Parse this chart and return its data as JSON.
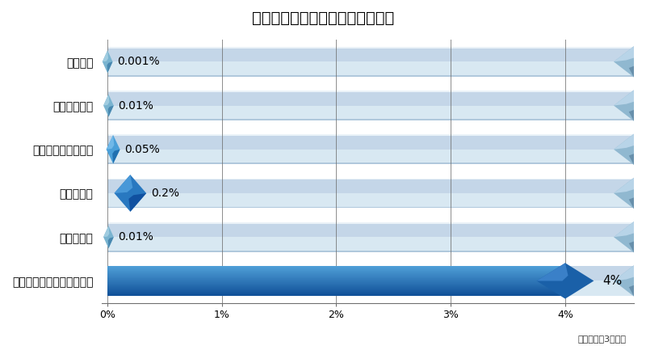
{
  "title": "》主な金融商品の利回り比較表《",
  "title_full": "[主な金融商品の利回り比較表]",
  "categories": [
    "普通預金",
    "定期預金５年",
    "個人向け国債１０年",
    "米ドル預金",
    "ユーロ預金",
    "当社オーナーズマンション"
  ],
  "values": [
    0.001,
    0.01,
    0.05,
    0.2,
    0.01,
    4.0
  ],
  "labels": [
    "0.001%",
    "0.01%",
    "0.05%",
    "0.2%",
    "0.01%",
    "4%"
  ],
  "xlim_max": 4.6,
  "xticks": [
    0,
    1,
    2,
    3,
    4
  ],
  "xticklabels": [
    "0%",
    "1%",
    "2%",
    "3%",
    "4%"
  ],
  "bar_bg_color_light": "#dce8f0",
  "bar_bg_color_mid": "#c8d8e8",
  "bar_stripe_color": "#e8f0f8",
  "bar_main_blue_top": "#4a9fd0",
  "bar_main_blue_bot": "#1a5fa8",
  "title_fontsize": 14,
  "cat_fontsize": 10,
  "val_fontsize": 10,
  "tick_fontsize": 9,
  "footnote": "平成３０年3月現在",
  "background_color": "#ffffff"
}
